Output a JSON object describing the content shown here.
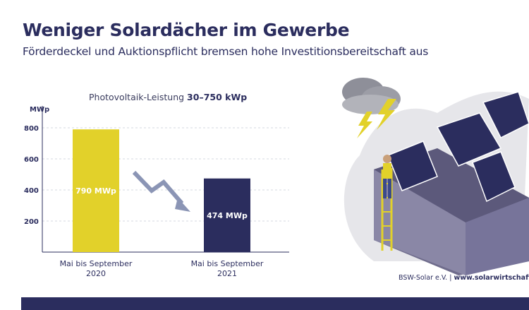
{
  "header": {
    "title": "Weniger Solardächer im Gewerbe",
    "subtitle": "Förderdeckel und Auktionspflicht bremsen hohe Investitionsbereitschaft aus"
  },
  "chart_heading": {
    "prefix": "Photovoltaik-Leistung",
    "bold": "30–750 kWp"
  },
  "chart_data": {
    "type": "bar",
    "ylabel": "MWp",
    "ylim": [
      0,
      850
    ],
    "yticks": [
      200,
      400,
      600,
      800
    ],
    "grid": true,
    "categories": [
      "Mai bis September\n2020",
      "Mai bis September\n2021"
    ],
    "values": [
      790,
      474
    ],
    "data_labels": [
      "790 MWp",
      "474 MWp"
    ],
    "colors": [
      "#e2d12a",
      "#2b2d5e"
    ]
  },
  "footer": {
    "org": "BSW-Solar e.V.",
    "separator": "|",
    "website": "www.solarwirtschaft.de"
  },
  "colors": {
    "navy": "#2b2d5e",
    "yellow": "#e2d12a",
    "arrow": "#8b95b5"
  }
}
